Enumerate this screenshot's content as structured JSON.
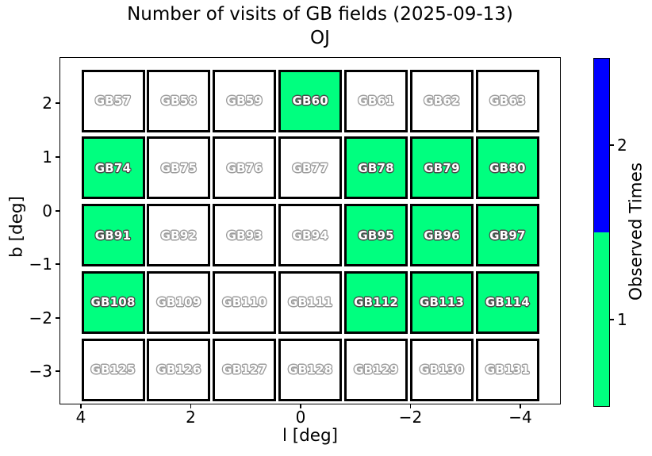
{
  "chart_data": {
    "type": "heatmap",
    "title": "Number of visits of GB fields (2025-09-13)",
    "subtitle": "OJ",
    "xlabel": "l [deg]",
    "ylabel": "b [deg]",
    "x_tick_labels": [
      "4",
      "2",
      "0",
      "−2",
      "−4"
    ],
    "x_tick_values": [
      4,
      2,
      0,
      -2,
      -4
    ],
    "y_tick_labels": [
      "2",
      "1",
      "0",
      "−1",
      "−2",
      "−3"
    ],
    "y_tick_values": [
      2,
      1,
      0,
      -1,
      -2,
      -3
    ],
    "x_axis_reversed": true,
    "grid": {
      "rows": 5,
      "cols": 7
    },
    "rows": [
      {
        "fields": [
          "GB57",
          "GB58",
          "GB59",
          "GB60",
          "GB61",
          "GB62",
          "GB63"
        ],
        "visits": [
          0,
          0,
          0,
          1,
          0,
          0,
          0
        ]
      },
      {
        "fields": [
          "GB74",
          "GB75",
          "GB76",
          "GB77",
          "GB78",
          "GB79",
          "GB80"
        ],
        "visits": [
          1,
          0,
          0,
          0,
          1,
          1,
          1
        ]
      },
      {
        "fields": [
          "GB91",
          "GB92",
          "GB93",
          "GB94",
          "GB95",
          "GB96",
          "GB97"
        ],
        "visits": [
          1,
          0,
          0,
          0,
          1,
          1,
          1
        ]
      },
      {
        "fields": [
          "GB108",
          "GB109",
          "GB110",
          "GB111",
          "GB112",
          "GB113",
          "GB114"
        ],
        "visits": [
          1,
          0,
          0,
          0,
          1,
          1,
          1
        ]
      },
      {
        "fields": [
          "GB125",
          "GB126",
          "GB127",
          "GB128",
          "GB129",
          "GB130",
          "GB131"
        ],
        "visits": [
          0,
          0,
          0,
          0,
          0,
          0,
          0
        ]
      }
    ],
    "colorbar": {
      "label": "Observed Times",
      "tick_labels": [
        "2",
        "1"
      ],
      "segments": [
        {
          "value": 2,
          "color": "#0000FF"
        },
        {
          "value": 1,
          "color": "#00FF7F"
        }
      ]
    },
    "colors": {
      "observed_once": "#00FF7F",
      "observed_twice": "#0000FF",
      "unobserved": "#FFFFFF",
      "cell_border": "#000000",
      "label_text": "#FFFFFF",
      "label_outline_observed": "#4A4A4A",
      "label_outline_unobserved": "#9C9C9C"
    }
  }
}
